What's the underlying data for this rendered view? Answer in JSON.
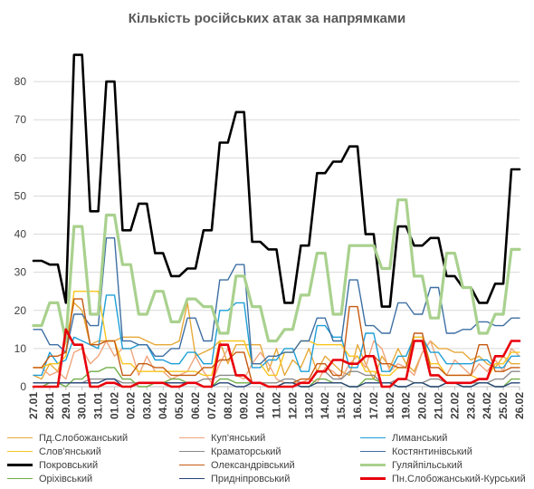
{
  "chart_data": {
    "type": "line",
    "title": "Кількість російських атак за напрямками",
    "xlabel": "",
    "ylabel": "",
    "ylim": [
      0,
      90
    ],
    "yticks": [
      0,
      10,
      20,
      30,
      40,
      50,
      60,
      70,
      80
    ],
    "grid": true,
    "legend_position": "bottom",
    "categories": [
      "27.01",
      "28.01",
      "29.01",
      "30.01",
      "31.01",
      "01.02",
      "02.02",
      "03.02",
      "04.02",
      "05.02",
      "06.02",
      "07.02",
      "08.02",
      "09.02",
      "10.02",
      "11.02",
      "12.02",
      "13.02",
      "14.02",
      "15.02",
      "16.02",
      "17.02",
      "18.02",
      "19.02",
      "20.02",
      "21.02",
      "22.02",
      "23.02",
      "24.02",
      "25.02",
      "26.02"
    ],
    "x": [
      "27.01",
      "28.01",
      "28.01",
      "29.01",
      "29.01",
      "30.01",
      "30.01",
      "31.01",
      "31.01",
      "01.02",
      "01.02",
      "02.02",
      "02.02",
      "03.02",
      "03.02",
      "04.02",
      "04.02",
      "05.02",
      "05.02",
      "06.02",
      "06.02",
      "07.02",
      "07.02",
      "08.02",
      "08.02",
      "09.02",
      "09.02",
      "10.02",
      "10.02",
      "11.02",
      "11.02",
      "12.02",
      "12.02",
      "13.02",
      "13.02",
      "14.02",
      "14.02",
      "15.02",
      "15.02",
      "16.02",
      "16.02",
      "17.02",
      "17.02",
      "18.02",
      "18.02",
      "19.02",
      "19.02",
      "20.02",
      "20.02",
      "21.02",
      "21.02",
      "22.02",
      "22.02",
      "23.02",
      "23.02",
      "24.02",
      "24.02",
      "25.02",
      "25.02",
      "26.02",
      "26.02"
    ],
    "series": [
      {
        "name": "Пд.Слобожанський",
        "color": "#e7a93a",
        "width": 1.4,
        "values": [
          3,
          2,
          6,
          4,
          12,
          22,
          20,
          11,
          12,
          12,
          12,
          13,
          13,
          13,
          12,
          11,
          11,
          11,
          12,
          22,
          8,
          9,
          10,
          12,
          6,
          11,
          11,
          11,
          11,
          4,
          10,
          3,
          7,
          5,
          10,
          4,
          8,
          6,
          4,
          3,
          11,
          6,
          2,
          8,
          5,
          10,
          6,
          4,
          9,
          12,
          10,
          10,
          9,
          9,
          7,
          8,
          6,
          5,
          8,
          6,
          6
        ]
      },
      {
        "name": "Куп'янський",
        "color": "#f0a57c",
        "width": 1.4,
        "values": [
          5,
          5,
          3,
          4,
          2,
          9,
          10,
          6,
          8,
          12,
          8,
          10,
          10,
          3,
          8,
          4,
          4,
          2,
          3,
          4,
          8,
          4,
          1,
          6,
          10,
          3,
          2,
          6,
          9,
          6,
          2,
          1,
          1,
          1,
          2,
          1,
          5,
          4,
          2,
          6,
          8,
          5,
          12,
          10,
          4,
          6,
          5,
          3,
          9,
          12,
          6,
          3,
          7,
          5,
          3,
          6,
          4,
          7,
          4,
          10,
          8
        ]
      },
      {
        "name": "Лиманський",
        "color": "#1e9fd7",
        "width": 1.4,
        "values": [
          3,
          3,
          9,
          6,
          7,
          13,
          12,
          11,
          10,
          24,
          24,
          10,
          10,
          11,
          11,
          7,
          7,
          6,
          6,
          9,
          9,
          6,
          6,
          20,
          20,
          22,
          22,
          5,
          5,
          7,
          7,
          10,
          10,
          4,
          4,
          16,
          16,
          13,
          13,
          5,
          5,
          14,
          14,
          4,
          4,
          8,
          8,
          13,
          13,
          9,
          9,
          6,
          6,
          6,
          6,
          7,
          7,
          5,
          5,
          8,
          8
        ]
      },
      {
        "name": "Слов'янський",
        "color": "#f7c520",
        "width": 1.4,
        "values": [
          5,
          5,
          6,
          6,
          8,
          25,
          25,
          25,
          25,
          12,
          12,
          6,
          6,
          4,
          4,
          4,
          4,
          4,
          4,
          4,
          4,
          3,
          3,
          12,
          12,
          12,
          12,
          6,
          6,
          3,
          3,
          9,
          9,
          12,
          12,
          11,
          11,
          11,
          11,
          8,
          8,
          4,
          4,
          3,
          3,
          5,
          5,
          13,
          13,
          6,
          6,
          3,
          3,
          3,
          3,
          2,
          2,
          6,
          6,
          9,
          9
        ]
      },
      {
        "name": "Краматорський",
        "color": "#8a8a8a",
        "width": 1.4,
        "values": [
          1,
          1,
          1,
          1,
          1,
          1,
          1,
          2,
          2,
          2,
          2,
          1,
          1,
          1,
          1,
          1,
          1,
          1,
          1,
          1,
          1,
          2,
          2,
          3,
          3,
          3,
          3,
          1,
          1,
          1,
          1,
          2,
          2,
          1,
          1,
          4,
          4,
          2,
          2,
          4,
          4,
          3,
          3,
          1,
          1,
          2,
          2,
          1,
          1,
          2,
          2,
          1,
          1,
          1,
          1,
          1,
          1,
          2,
          2,
          4,
          4
        ]
      },
      {
        "name": "Костянтинівський",
        "color": "#3e6fa3",
        "width": 1.4,
        "values": [
          15,
          15,
          11,
          11,
          9,
          19,
          19,
          16,
          16,
          39,
          39,
          12,
          12,
          11,
          11,
          8,
          8,
          10,
          10,
          18,
          18,
          12,
          12,
          28,
          28,
          32,
          32,
          6,
          6,
          8,
          8,
          9,
          9,
          12,
          12,
          18,
          18,
          12,
          12,
          28,
          28,
          16,
          16,
          14,
          14,
          22,
          22,
          19,
          19,
          26,
          26,
          14,
          14,
          15,
          15,
          17,
          17,
          16,
          16,
          18,
          18
        ]
      },
      {
        "name": "Покровський",
        "color": "#000000",
        "width": 2.6,
        "values": [
          33,
          33,
          32,
          32,
          22,
          87,
          87,
          46,
          46,
          80,
          80,
          41,
          41,
          48,
          48,
          35,
          35,
          29,
          29,
          31,
          31,
          41,
          41,
          64,
          64,
          72,
          72,
          38,
          38,
          36,
          36,
          22,
          22,
          37,
          37,
          56,
          56,
          59,
          59,
          63,
          63,
          40,
          40,
          21,
          21,
          42,
          42,
          37,
          37,
          39,
          39,
          29,
          29,
          26,
          26,
          22,
          22,
          27,
          27,
          57,
          57
        ]
      },
      {
        "name": "Олександрівський",
        "color": "#c55a11",
        "width": 1.4,
        "values": [
          5,
          5,
          8,
          8,
          9,
          23,
          23,
          11,
          11,
          12,
          12,
          3,
          3,
          6,
          6,
          5,
          5,
          3,
          3,
          3,
          3,
          5,
          5,
          7,
          7,
          9,
          9,
          1,
          1,
          0,
          0,
          1,
          1,
          2,
          2,
          6,
          6,
          3,
          3,
          21,
          21,
          8,
          8,
          6,
          6,
          5,
          5,
          14,
          14,
          5,
          5,
          3,
          3,
          3,
          3,
          11,
          11,
          4,
          4,
          5,
          5
        ]
      },
      {
        "name": "Гуляйпільський",
        "color": "#a9d18e",
        "width": 3.2,
        "values": [
          16,
          16,
          22,
          22,
          12,
          42,
          42,
          19,
          19,
          45,
          45,
          32,
          32,
          19,
          19,
          25,
          25,
          17,
          17,
          23,
          23,
          21,
          21,
          14,
          14,
          29,
          29,
          21,
          21,
          12,
          12,
          15,
          15,
          24,
          24,
          35,
          35,
          19,
          19,
          37,
          37,
          37,
          37,
          31,
          31,
          49,
          49,
          29,
          29,
          18,
          18,
          35,
          35,
          26,
          26,
          14,
          14,
          19,
          19,
          36,
          36
        ]
      },
      {
        "name": "Оріхівський",
        "color": "#70ad47",
        "width": 1.4,
        "values": [
          0,
          0,
          1,
          1,
          0,
          2,
          2,
          4,
          4,
          5,
          5,
          2,
          2,
          0,
          0,
          1,
          1,
          2,
          2,
          1,
          1,
          0,
          0,
          2,
          2,
          1,
          1,
          1,
          1,
          0,
          0,
          1,
          1,
          0,
          0,
          2,
          2,
          1,
          1,
          0,
          0,
          2,
          2,
          1,
          1,
          0,
          0,
          1,
          1,
          0,
          0,
          1,
          1,
          0,
          0,
          1,
          1,
          0,
          0,
          2,
          2
        ]
      },
      {
        "name": "Придніпровський",
        "color": "#264478",
        "width": 1.4,
        "values": [
          1,
          1,
          1,
          1,
          1,
          1,
          1,
          1,
          1,
          2,
          2,
          0,
          0,
          1,
          1,
          1,
          1,
          1,
          1,
          1,
          1,
          0,
          0,
          1,
          1,
          0,
          0,
          1,
          1,
          0,
          0,
          1,
          1,
          0,
          0,
          1,
          1,
          1,
          1,
          0,
          0,
          1,
          1,
          1,
          1,
          0,
          0,
          1,
          1,
          0,
          0,
          1,
          1,
          0,
          0,
          1,
          1,
          0,
          0,
          1,
          1
        ]
      },
      {
        "name": "Пн.Слобожанський-Курський",
        "color": "#e8000b",
        "width": 2.6,
        "values": [
          0,
          0,
          0,
          0,
          15,
          11,
          11,
          0,
          0,
          1,
          1,
          0,
          0,
          1,
          1,
          1,
          1,
          0,
          0,
          1,
          1,
          0,
          0,
          11,
          11,
          3,
          3,
          1,
          1,
          0,
          0,
          0,
          0,
          1,
          1,
          4,
          4,
          7,
          7,
          6,
          6,
          8,
          8,
          0,
          0,
          2,
          2,
          12,
          12,
          3,
          3,
          1,
          1,
          1,
          1,
          2,
          2,
          8,
          8,
          12,
          12
        ]
      }
    ]
  },
  "legend": [
    {
      "label": "Пд.Слобожанський",
      "color": "#e7a93a",
      "width": 1.4
    },
    {
      "label": "Куп'янський",
      "color": "#f0a57c",
      "width": 1.4
    },
    {
      "label": "Лиманський",
      "color": "#1e9fd7",
      "width": 1.4
    },
    {
      "label": "Слов'янський",
      "color": "#f7c520",
      "width": 1.4
    },
    {
      "label": "Краматорський",
      "color": "#8a8a8a",
      "width": 1.4
    },
    {
      "label": "Костянтинівський",
      "color": "#3e6fa3",
      "width": 1.4
    },
    {
      "label": "Покровський",
      "color": "#000000",
      "width": 2.6
    },
    {
      "label": "Олександрівський",
      "color": "#c55a11",
      "width": 1.4
    },
    {
      "label": "Гуляйпільський",
      "color": "#a9d18e",
      "width": 3.2
    },
    {
      "label": "Оріхівський",
      "color": "#70ad47",
      "width": 1.4
    },
    {
      "label": "Придніпровський",
      "color": "#264478",
      "width": 1.4
    },
    {
      "label": "Пн.Слобожанський-Курський",
      "color": "#e8000b",
      "width": 2.6
    }
  ]
}
